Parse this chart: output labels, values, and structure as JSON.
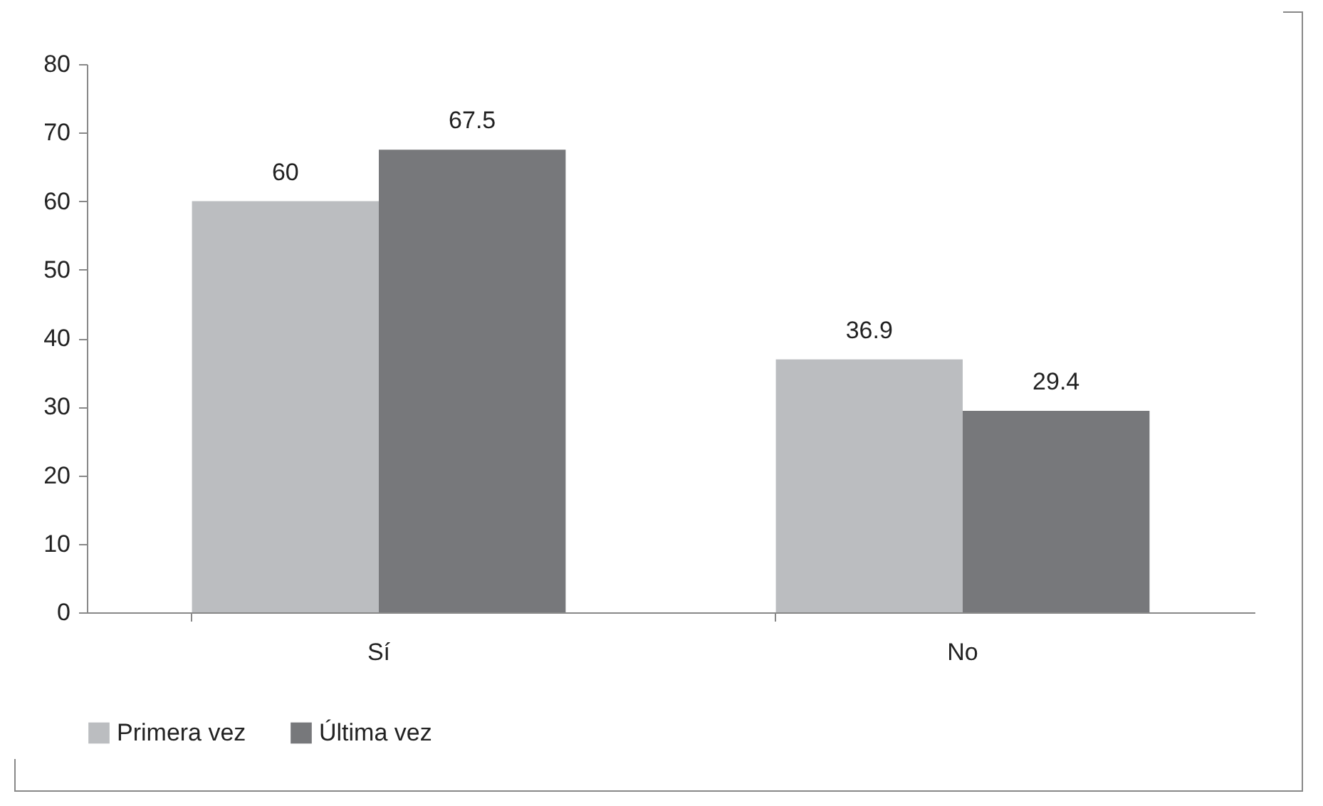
{
  "chart_data": {
    "type": "bar",
    "categories": [
      "Sí",
      "No"
    ],
    "series": [
      {
        "name": "Primera vez",
        "color": "#bbbdc0",
        "values": [
          60,
          36.9
        ]
      },
      {
        "name": "Última vez",
        "color": "#77787b",
        "values": [
          67.5,
          29.4
        ]
      }
    ],
    "ylim": [
      0,
      80
    ],
    "yticks": [
      0,
      10,
      20,
      30,
      40,
      50,
      60,
      70,
      80
    ],
    "grid": false,
    "legend": "bottom",
    "data_labels": true
  }
}
